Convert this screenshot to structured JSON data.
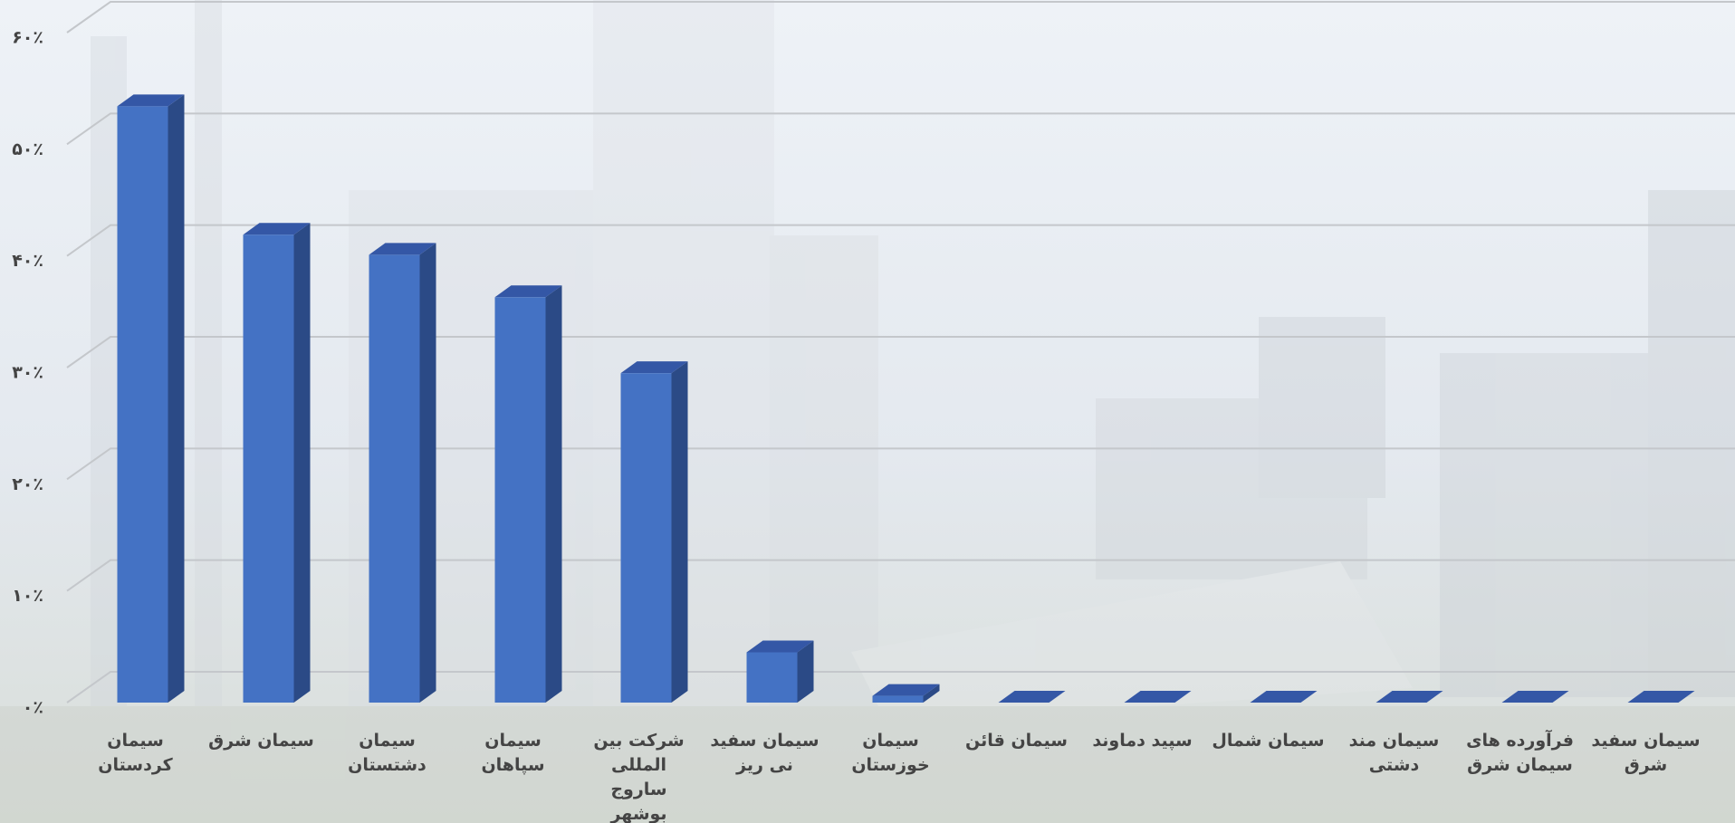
{
  "chart_data": {
    "type": "bar3d",
    "categories": [
      "سیمان کردستان",
      "سیمان شرق",
      "سیمان دشتستان",
      "سیمان سپاهان",
      "شرکت بین المللی ساروج بوشهر",
      "سیمان سفید نی ریز",
      "سیمان خوزستان",
      "سیمان قائن",
      "سپید دماوند",
      "سیمان شمال",
      "سیمان مند دشتی",
      "فرآورده های سیمان شرق",
      "سیمان سفید شرق"
    ],
    "values": [
      53.4,
      41.9,
      40.1,
      36.3,
      29.5,
      4.5,
      0.6,
      0,
      0,
      0,
      0,
      0,
      0
    ],
    "color": "#4472c4",
    "ylim": [
      0,
      60
    ],
    "yticks": [
      {
        "value": 0,
        "label": "۰٪"
      },
      {
        "value": 10,
        "label": "۱۰٪"
      },
      {
        "value": 20,
        "label": "۲۰٪"
      },
      {
        "value": 30,
        "label": "۳۰٪"
      },
      {
        "value": 40,
        "label": "۴۰٪"
      },
      {
        "value": 50,
        "label": "۵۰٪"
      },
      {
        "value": 60,
        "label": "۶۰٪"
      }
    ],
    "grid": true
  }
}
